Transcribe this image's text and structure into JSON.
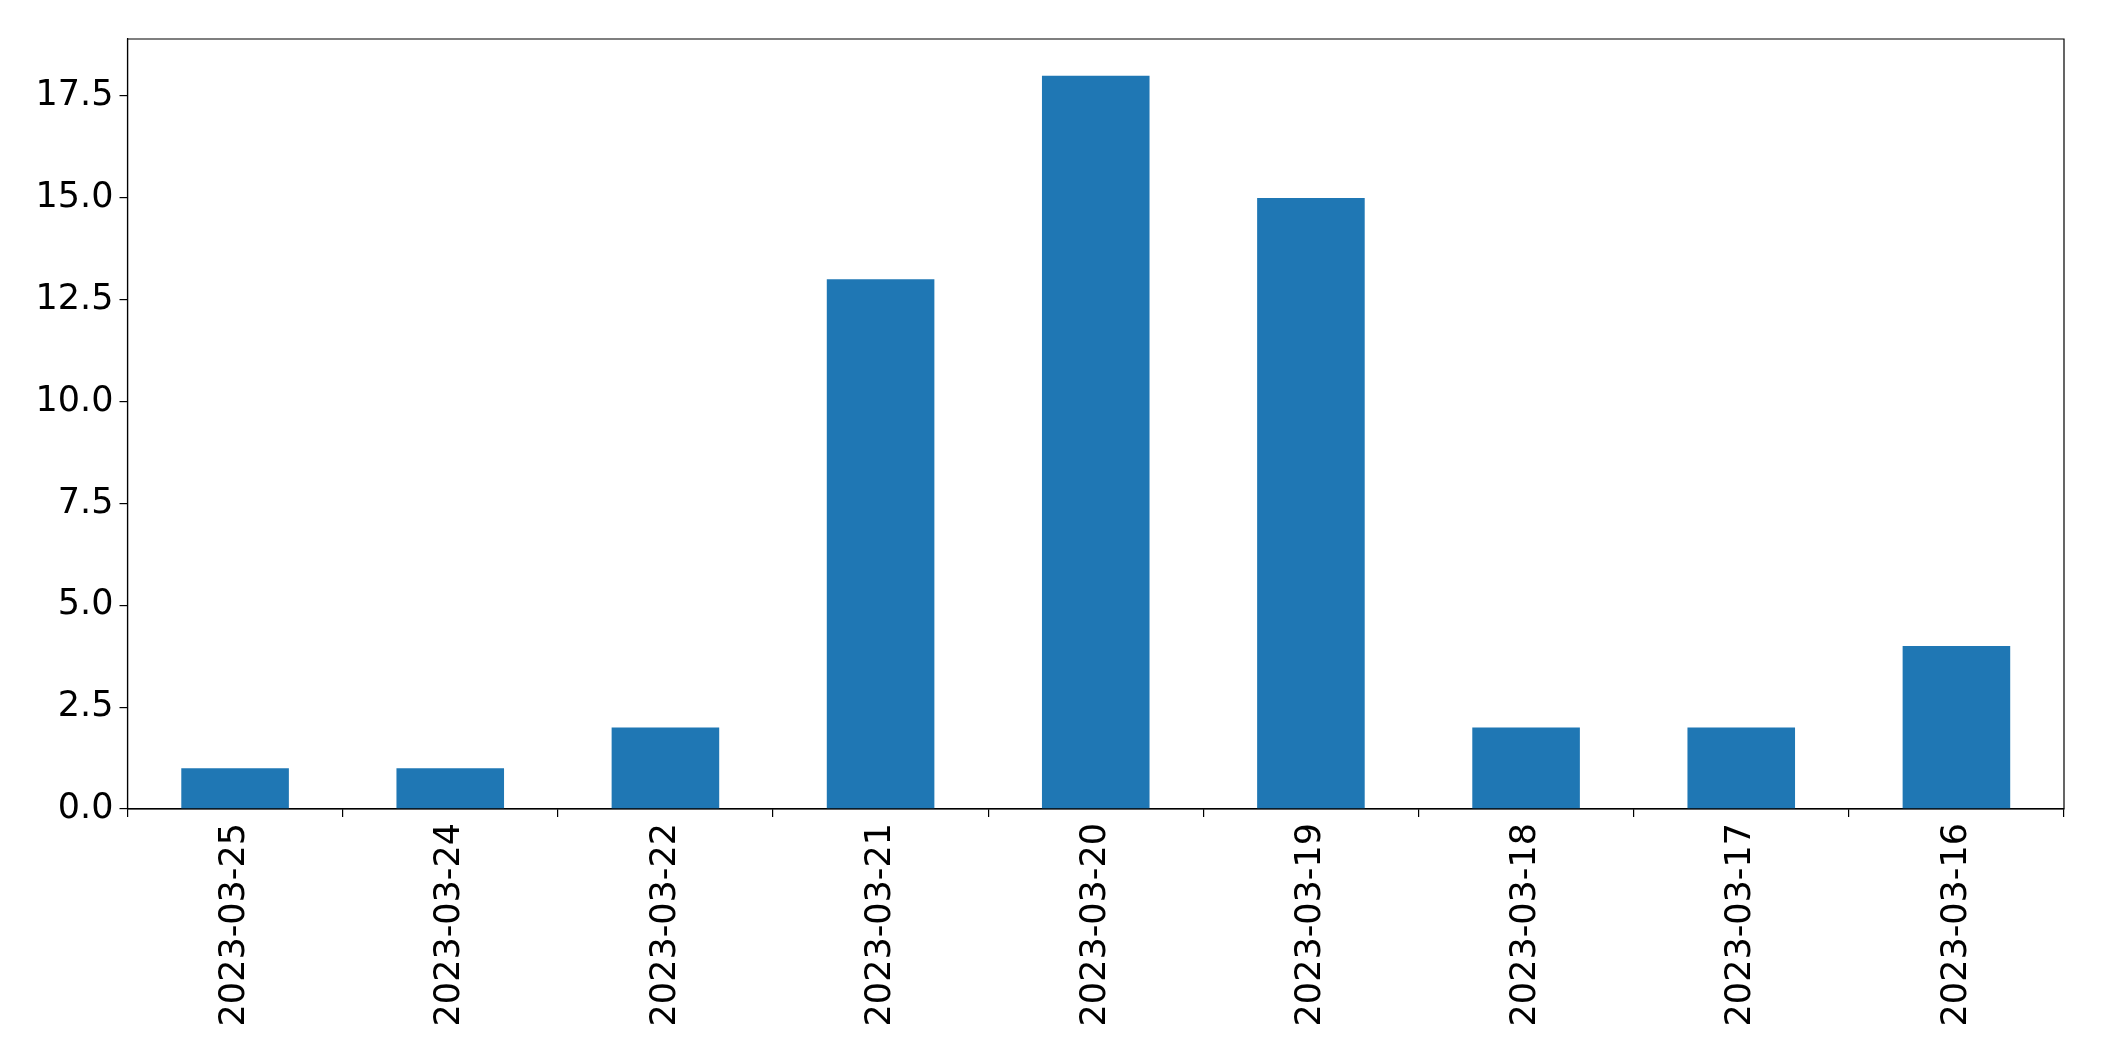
{
  "chart_data": {
    "type": "bar",
    "categories": [
      "2023-03-25",
      "2023-03-24",
      "2023-03-22",
      "2023-03-21",
      "2023-03-20",
      "2023-03-19",
      "2023-03-18",
      "2023-03-17",
      "2023-03-16"
    ],
    "values": [
      1,
      1,
      2,
      13,
      18,
      15,
      2,
      2,
      4
    ],
    "color": "#1f77b4",
    "ylim": [
      0,
      18.9
    ],
    "yticks": [
      {
        "value": 0,
        "label": "0.0"
      },
      2.5,
      {
        "value": 5,
        "label": "5.0"
      },
      7.5,
      {
        "value": 10,
        "label": "10.0"
      },
      12.5,
      {
        "value": 15,
        "label": "15.0"
      },
      17.5
    ]
  }
}
